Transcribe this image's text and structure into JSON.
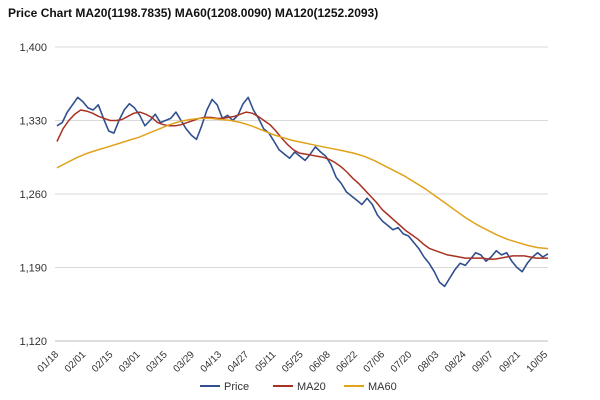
{
  "chart_data": {
    "type": "line",
    "title": "Price Chart MA20(1198.7835) MA60(1208.0090) MA120(1252.2093)",
    "xlabel": "",
    "ylabel": "",
    "ylim": [
      1120,
      1400
    ],
    "yticks": [
      "1,120",
      "1,190",
      "1,260",
      "1,330",
      "1,400"
    ],
    "ytick_values": [
      1120,
      1190,
      1260,
      1330,
      1400
    ],
    "x_tick_labels": [
      "01/18",
      "02/01",
      "02/15",
      "03/01",
      "03/15",
      "03/29",
      "04/13",
      "04/27",
      "05/11",
      "05/25",
      "06/08",
      "06/22",
      "07/06",
      "07/20",
      "08/03",
      "08/24",
      "09/07",
      "09/21",
      "10/05"
    ],
    "grid": true,
    "legend_position": "bottom",
    "series": [
      {
        "name": "Price",
        "color": "#2f4f8f",
        "values": [
          1325,
          1328,
          1338,
          1345,
          1352,
          1348,
          1342,
          1340,
          1345,
          1332,
          1320,
          1318,
          1330,
          1340,
          1346,
          1342,
          1335,
          1325,
          1330,
          1336,
          1328,
          1330,
          1332,
          1338,
          1330,
          1322,
          1316,
          1312,
          1325,
          1340,
          1350,
          1345,
          1332,
          1335,
          1330,
          1335,
          1346,
          1352,
          1340,
          1332,
          1322,
          1318,
          1310,
          1302,
          1298,
          1294,
          1300,
          1296,
          1292,
          1298,
          1305,
          1300,
          1296,
          1288,
          1276,
          1270,
          1262,
          1258,
          1254,
          1250,
          1256,
          1250,
          1240,
          1234,
          1230,
          1226,
          1228,
          1222,
          1220,
          1214,
          1208,
          1200,
          1194,
          1186,
          1176,
          1172,
          1180,
          1188,
          1194,
          1192,
          1198,
          1204,
          1202,
          1196,
          1200,
          1206,
          1202,
          1204,
          1196,
          1190,
          1186,
          1194,
          1200,
          1204,
          1200,
          1203
        ]
      },
      {
        "name": "MA20",
        "color": "#a83222",
        "values": [
          1310,
          1322,
          1330,
          1336,
          1340,
          1339,
          1337,
          1334,
          1332,
          1330,
          1330,
          1331,
          1334,
          1337,
          1338,
          1336,
          1333,
          1328,
          1326,
          1325,
          1325,
          1326,
          1328,
          1330,
          1332,
          1333,
          1333,
          1332,
          1332,
          1333,
          1334,
          1336,
          1338,
          1337,
          1334,
          1330,
          1326,
          1320,
          1313,
          1307,
          1302,
          1299,
          1298,
          1297,
          1296,
          1295,
          1293,
          1290,
          1286,
          1281,
          1275,
          1270,
          1264,
          1258,
          1252,
          1245,
          1240,
          1235,
          1230,
          1225,
          1221,
          1217,
          1212,
          1208,
          1206,
          1204,
          1202,
          1201,
          1200,
          1199,
          1199,
          1199,
          1199,
          1198,
          1198,
          1199,
          1200,
          1201,
          1201,
          1201,
          1200,
          1199,
          1199,
          1199
        ]
      },
      {
        "name": "MA60",
        "color": "#e0a21a",
        "values": [
          1285,
          1290,
          1295,
          1299,
          1302,
          1305,
          1308,
          1311,
          1314,
          1318,
          1322,
          1326,
          1329,
          1331,
          1332,
          1332,
          1331,
          1330,
          1328,
          1325,
          1321,
          1317,
          1314,
          1311,
          1309,
          1307,
          1305,
          1303,
          1301,
          1299,
          1296,
          1292,
          1287,
          1282,
          1277,
          1271,
          1265,
          1258,
          1251,
          1244,
          1237,
          1231,
          1226,
          1221,
          1217,
          1214,
          1211,
          1209,
          1208
        ]
      }
    ]
  }
}
